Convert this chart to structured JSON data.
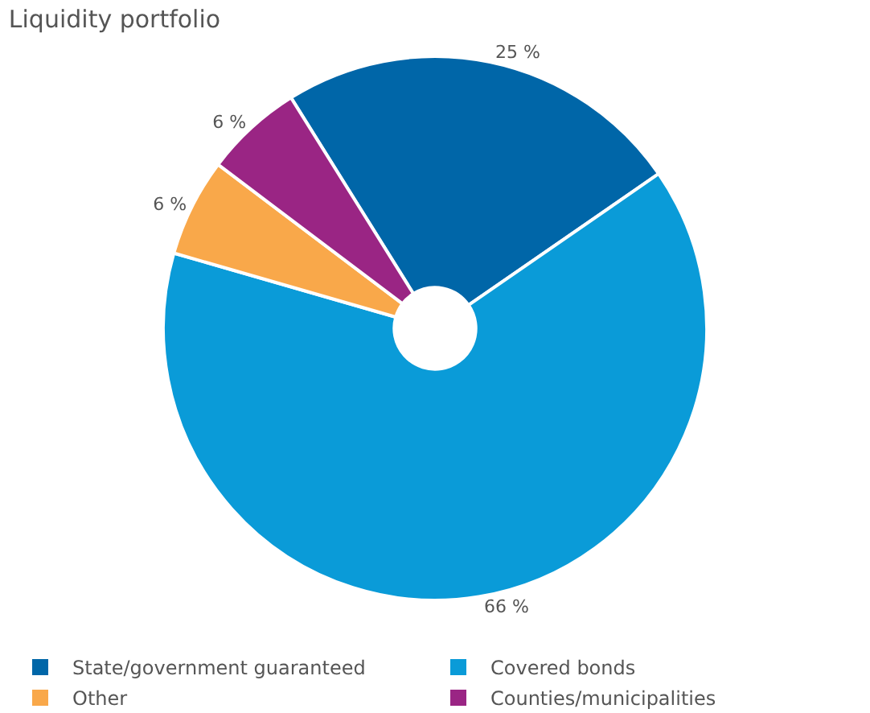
{
  "chart_data": {
    "type": "donut",
    "title": "Liquidity portfolio",
    "categories": [
      "State/government guaranteed",
      "Covered bonds",
      "Other",
      "Counties/municipalities"
    ],
    "values": [
      25,
      66,
      6,
      6
    ],
    "colors": [
      "#0066a8",
      "#0a9bd8",
      "#f9a84a",
      "#9a2584"
    ],
    "value_labels": [
      "25 %",
      "66 %",
      "6 %",
      "6 %"
    ],
    "legend": "bottom"
  }
}
